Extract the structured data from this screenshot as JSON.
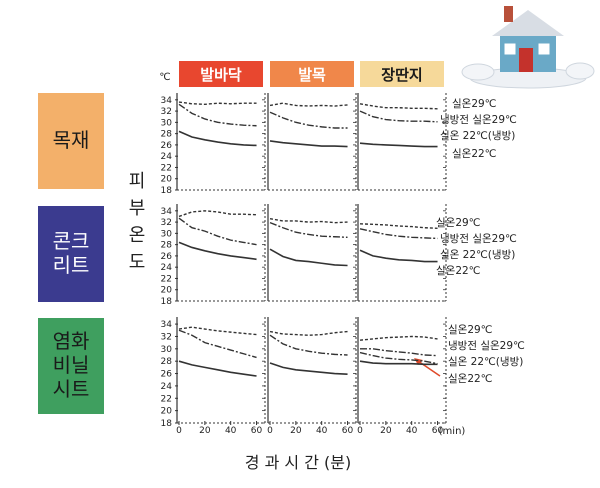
{
  "columns": [
    {
      "label": "발바닥",
      "color": "#e8472f"
    },
    {
      "label": "발목",
      "color": "#f0874a"
    },
    {
      "label": "장딴지",
      "color": "#f6d99a"
    }
  ],
  "rows": [
    {
      "label_lines": [
        "목재"
      ],
      "color": "#f3b06a",
      "text_color": "#1a1a1a"
    },
    {
      "label_lines": [
        "콘크",
        "리트"
      ],
      "color": "#3b3b8f",
      "text_color": "#ffffff"
    },
    {
      "label_lines": [
        "염화",
        "비닐",
        "시트"
      ],
      "color": "#3f9f5f",
      "text_color": "#1a1a1a"
    }
  ],
  "y_axis_title_chars": [
    "피",
    "부",
    "온",
    "도"
  ],
  "y_unit": "℃",
  "x_unit": "(min)",
  "x_axis_title": "경 과 시 간 (분)",
  "line_colors": {
    "ink": "#333333",
    "house_wall": "#6aa9c7",
    "house_roof": "#d8dde4",
    "house_door": "#c4322c"
  },
  "chart_data": {
    "type": "line",
    "x_ticks": [
      0,
      20,
      40,
      60
    ],
    "y_ticks": [
      18,
      20,
      22,
      24,
      26,
      28,
      30,
      32,
      34
    ],
    "xlim": [
      0,
      65
    ],
    "ylim": [
      18,
      34.5
    ],
    "series_names": [
      "실온29℃",
      "냉방전 실온29℃",
      "실온 22℃(냉방)",
      "실온22℃"
    ],
    "legends": [
      [
        "실온29℃",
        "냉방전 실온29℃",
        "실온 22℃(냉방)",
        "실온22℃"
      ],
      [
        "실온29℃",
        "냉방전 실온29℃",
        "실온 22℃(냉방)",
        "실온22℃"
      ],
      [
        "실온29℃",
        "냉방전 실온29℃",
        "실온 22℃(냉방)",
        "실온22℃"
      ]
    ],
    "panels": [
      {
        "row": 0,
        "col": 0,
        "series": [
          {
            "x": [
              0,
              10,
              20,
              30,
              40,
              50,
              60
            ],
            "y": [
              33.6,
              33.3,
              33.2,
              33.4,
              33.3,
              33.4,
              33.4
            ]
          },
          {
            "x": [
              0,
              10,
              20,
              30,
              40,
              50,
              60
            ],
            "y": [
              33.2,
              31.6,
              30.6,
              30.0,
              29.7,
              29.5,
              29.4
            ]
          },
          {
            "x": [
              0,
              60
            ],
            "y": [],
            "hidden": true
          },
          {
            "x": [
              0,
              10,
              20,
              30,
              40,
              50,
              60
            ],
            "y": [
              28.4,
              27.4,
              26.9,
              26.5,
              26.2,
              26.0,
              25.9
            ]
          }
        ]
      },
      {
        "row": 0,
        "col": 1,
        "series": [
          {
            "x": [
              0,
              10,
              20,
              30,
              40,
              50,
              60
            ],
            "y": [
              33.0,
              33.4,
              33.0,
              32.9,
              33.0,
              32.9,
              33.1
            ]
          },
          {
            "x": [
              0,
              10,
              20,
              30,
              40,
              50,
              60
            ],
            "y": [
              31.8,
              30.8,
              30.0,
              29.5,
              29.2,
              29.0,
              29.0
            ]
          },
          {
            "x": [
              0,
              60
            ],
            "y": [],
            "hidden": true
          },
          {
            "x": [
              0,
              10,
              20,
              30,
              40,
              50,
              60
            ],
            "y": [
              26.7,
              26.4,
              26.2,
              26.0,
              25.8,
              25.8,
              25.7
            ]
          }
        ]
      },
      {
        "row": 0,
        "col": 2,
        "series": [
          {
            "x": [
              0,
              10,
              20,
              30,
              40,
              50,
              60
            ],
            "y": [
              33.3,
              32.9,
              32.6,
              32.6,
              32.5,
              32.5,
              32.4
            ]
          },
          {
            "x": [
              0,
              10,
              20,
              30,
              40,
              50,
              60
            ],
            "y": [
              32.0,
              31.0,
              30.5,
              30.3,
              30.2,
              30.2,
              30.1
            ]
          },
          {
            "x": [
              0,
              60
            ],
            "y": [],
            "hidden": true
          },
          {
            "x": [
              0,
              10,
              20,
              30,
              40,
              50,
              60
            ],
            "y": [
              26.3,
              26.1,
              26.0,
              25.9,
              25.8,
              25.7,
              25.7
            ]
          }
        ]
      },
      {
        "row": 1,
        "col": 0,
        "series": [
          {
            "x": [
              0,
              10,
              20,
              30,
              40,
              50,
              60
            ],
            "y": [
              33.0,
              33.8,
              34.0,
              33.8,
              33.4,
              33.4,
              33.3
            ]
          },
          {
            "x": [
              0,
              10,
              20,
              30,
              40,
              50,
              60
            ],
            "y": [
              32.7,
              31.0,
              30.4,
              29.5,
              28.8,
              28.4,
              28.0
            ]
          },
          {
            "x": [
              0,
              60
            ],
            "y": [],
            "hidden": true
          },
          {
            "x": [
              0,
              10,
              20,
              30,
              40,
              50,
              60
            ],
            "y": [
              28.4,
              27.5,
              26.9,
              26.4,
              26.0,
              25.7,
              25.4
            ]
          }
        ]
      },
      {
        "row": 1,
        "col": 1,
        "series": [
          {
            "x": [
              0,
              10,
              20,
              30,
              40,
              50,
              60
            ],
            "y": [
              32.6,
              32.2,
              32.2,
              32.0,
              32.1,
              31.9,
              32.0
            ]
          },
          {
            "x": [
              0,
              10,
              20,
              30,
              40,
              50,
              60
            ],
            "y": [
              31.9,
              31.0,
              30.2,
              29.8,
              29.5,
              29.4,
              29.3
            ]
          },
          {
            "x": [
              0,
              60
            ],
            "y": [],
            "hidden": true
          },
          {
            "x": [
              0,
              10,
              20,
              30,
              40,
              50,
              60
            ],
            "y": [
              27.2,
              25.9,
              25.2,
              25.0,
              24.7,
              24.4,
              24.3
            ]
          }
        ]
      },
      {
        "row": 1,
        "col": 2,
        "series": [
          {
            "x": [
              0,
              10,
              20,
              30,
              40,
              50,
              60
            ],
            "y": [
              31.7,
              31.6,
              31.5,
              31.3,
              31.2,
              31.0,
              30.9
            ]
          },
          {
            "x": [
              0,
              10,
              20,
              30,
              40,
              50,
              60
            ],
            "y": [
              30.8,
              30.3,
              29.8,
              29.5,
              29.3,
              29.2,
              29.1
            ]
          },
          {
            "x": [
              0,
              60
            ],
            "y": [],
            "hidden": true
          },
          {
            "x": [
              0,
              10,
              20,
              30,
              40,
              50,
              60
            ],
            "y": [
              27.0,
              26.0,
              25.6,
              25.3,
              25.2,
              25.0,
              25.0
            ]
          }
        ]
      },
      {
        "row": 2,
        "col": 0,
        "series": [
          {
            "x": [
              0,
              10,
              20,
              30,
              40,
              50,
              60
            ],
            "y": [
              33.2,
              33.5,
              33.2,
              32.9,
              32.7,
              32.5,
              32.3
            ]
          },
          {
            "x": [
              0,
              10,
              20,
              30,
              40,
              50,
              60
            ],
            "y": [
              33.0,
              32.2,
              31.0,
              30.4,
              29.8,
              29.2,
              28.6
            ]
          },
          {
            "x": [
              0,
              60
            ],
            "y": [],
            "hidden": true
          },
          {
            "x": [
              0,
              10,
              20,
              30,
              40,
              50,
              60
            ],
            "y": [
              28.0,
              27.4,
              27.0,
              26.6,
              26.2,
              25.9,
              25.6
            ]
          }
        ]
      },
      {
        "row": 2,
        "col": 1,
        "series": [
          {
            "x": [
              0,
              10,
              20,
              30,
              40,
              50,
              60
            ],
            "y": [
              32.8,
              32.4,
              32.3,
              32.2,
              32.3,
              32.6,
              32.8
            ]
          },
          {
            "x": [
              0,
              10,
              20,
              30,
              40,
              50,
              60
            ],
            "y": [
              32.2,
              30.8,
              30.0,
              29.6,
              29.3,
              29.1,
              29.0
            ]
          },
          {
            "x": [
              0,
              60
            ],
            "y": [],
            "hidden": true
          },
          {
            "x": [
              0,
              10,
              20,
              30,
              40,
              50,
              60
            ],
            "y": [
              27.7,
              27.0,
              26.6,
              26.4,
              26.2,
              26.0,
              25.9
            ]
          }
        ]
      },
      {
        "row": 2,
        "col": 2,
        "series": [
          {
            "x": [
              0,
              10,
              20,
              30,
              40,
              50,
              60
            ],
            "y": [
              31.4,
              31.6,
              31.8,
              31.9,
              32.0,
              31.9,
              31.6
            ]
          },
          {
            "x": [
              0,
              10,
              20,
              30,
              40,
              50,
              60
            ],
            "y": [
              30.0,
              30.0,
              29.7,
              29.5,
              29.3,
              29.0,
              28.9
            ]
          },
          {
            "x": [
              0,
              10,
              20,
              30,
              40,
              50,
              60
            ],
            "y": [
              29.4,
              28.9,
              28.5,
              28.3,
              28.2,
              28.0,
              27.6
            ]
          },
          {
            "x": [
              0,
              10,
              20,
              30,
              40,
              50,
              60
            ],
            "y": [
              28.0,
              27.7,
              27.6,
              27.6,
              27.6,
              27.5,
              27.5
            ]
          }
        ]
      }
    ]
  }
}
